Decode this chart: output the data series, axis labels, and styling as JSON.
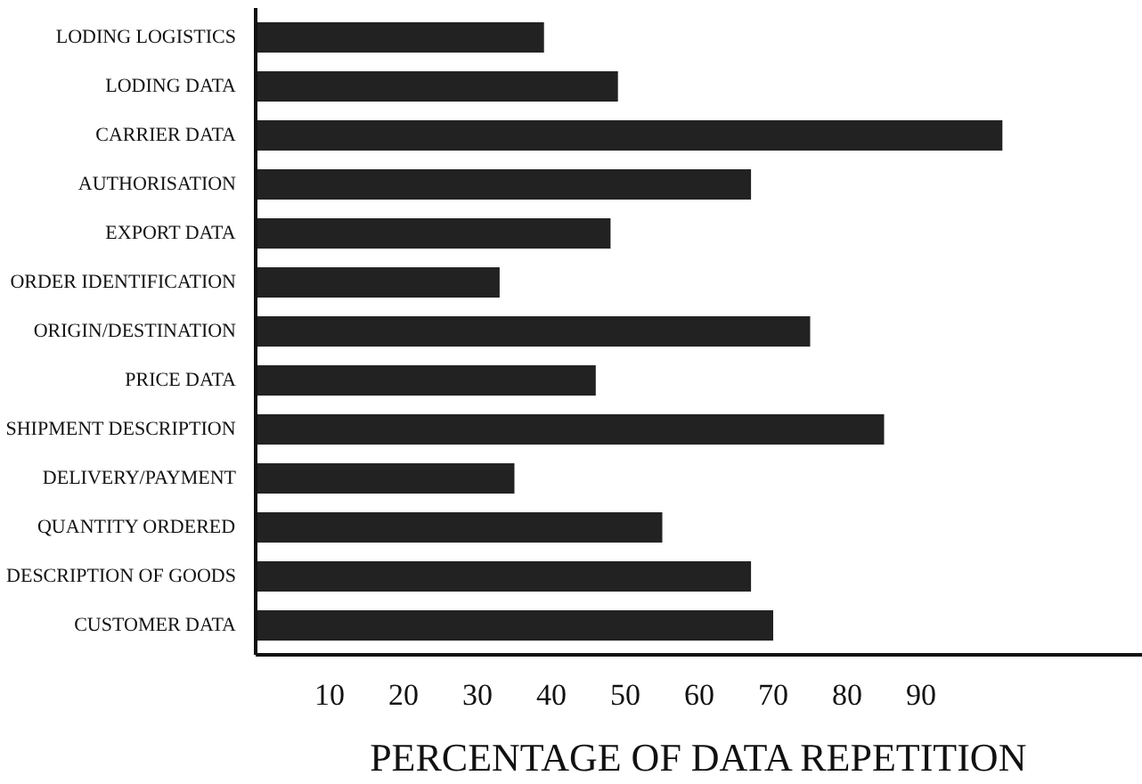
{
  "chart_data": {
    "type": "bar",
    "orientation": "horizontal",
    "xlabel": "PERCENTAGE OF DATA REPETITION",
    "categories": [
      "LODING LOGISTICS",
      "LODING DATA",
      "CARRIER DATA",
      "AUTHORISATION",
      "EXPORT DATA",
      "ORDER IDENTIFICATION",
      "ORIGIN/DESTINATION",
      "PRICE DATA",
      "SHIPMENT DESCRIPTION",
      "DELIVERY/PAYMENT",
      "QUANTITY ORDERED",
      "DESCRIPTION OF GOODS",
      "CUSTOMER DATA"
    ],
    "values": [
      39,
      49,
      101,
      67,
      48,
      33,
      75,
      46,
      85,
      35,
      55,
      67,
      70
    ],
    "color": "#222222",
    "xlim": [
      0,
      120
    ],
    "xticks": [
      10,
      20,
      30,
      40,
      50,
      60,
      70,
      80,
      90
    ],
    "grid": false
  }
}
